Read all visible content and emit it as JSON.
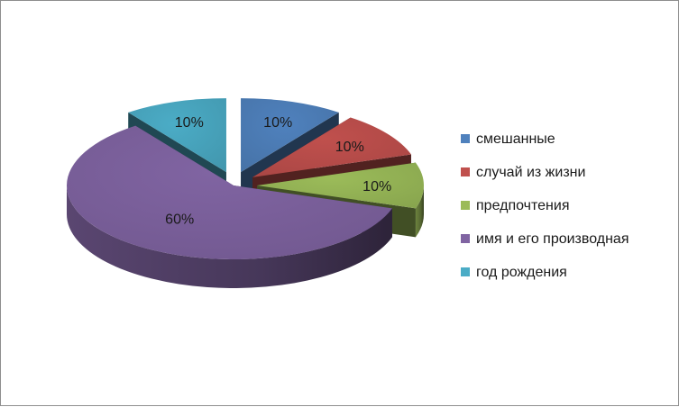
{
  "chart_data": {
    "type": "pie",
    "style": "3d-exploded",
    "categories": [
      "смешанные",
      "случай из жизни",
      "предпочтения",
      "имя и его производная",
      "год рождения"
    ],
    "values": [
      10,
      10,
      10,
      60,
      10
    ],
    "labels": [
      "10%",
      "10%",
      "10%",
      "60%",
      "10%"
    ],
    "colors": [
      "#4f81bd",
      "#c0504d",
      "#9bbb59",
      "#8064a2",
      "#4bacc6"
    ],
    "legend_position": "right",
    "title": ""
  }
}
